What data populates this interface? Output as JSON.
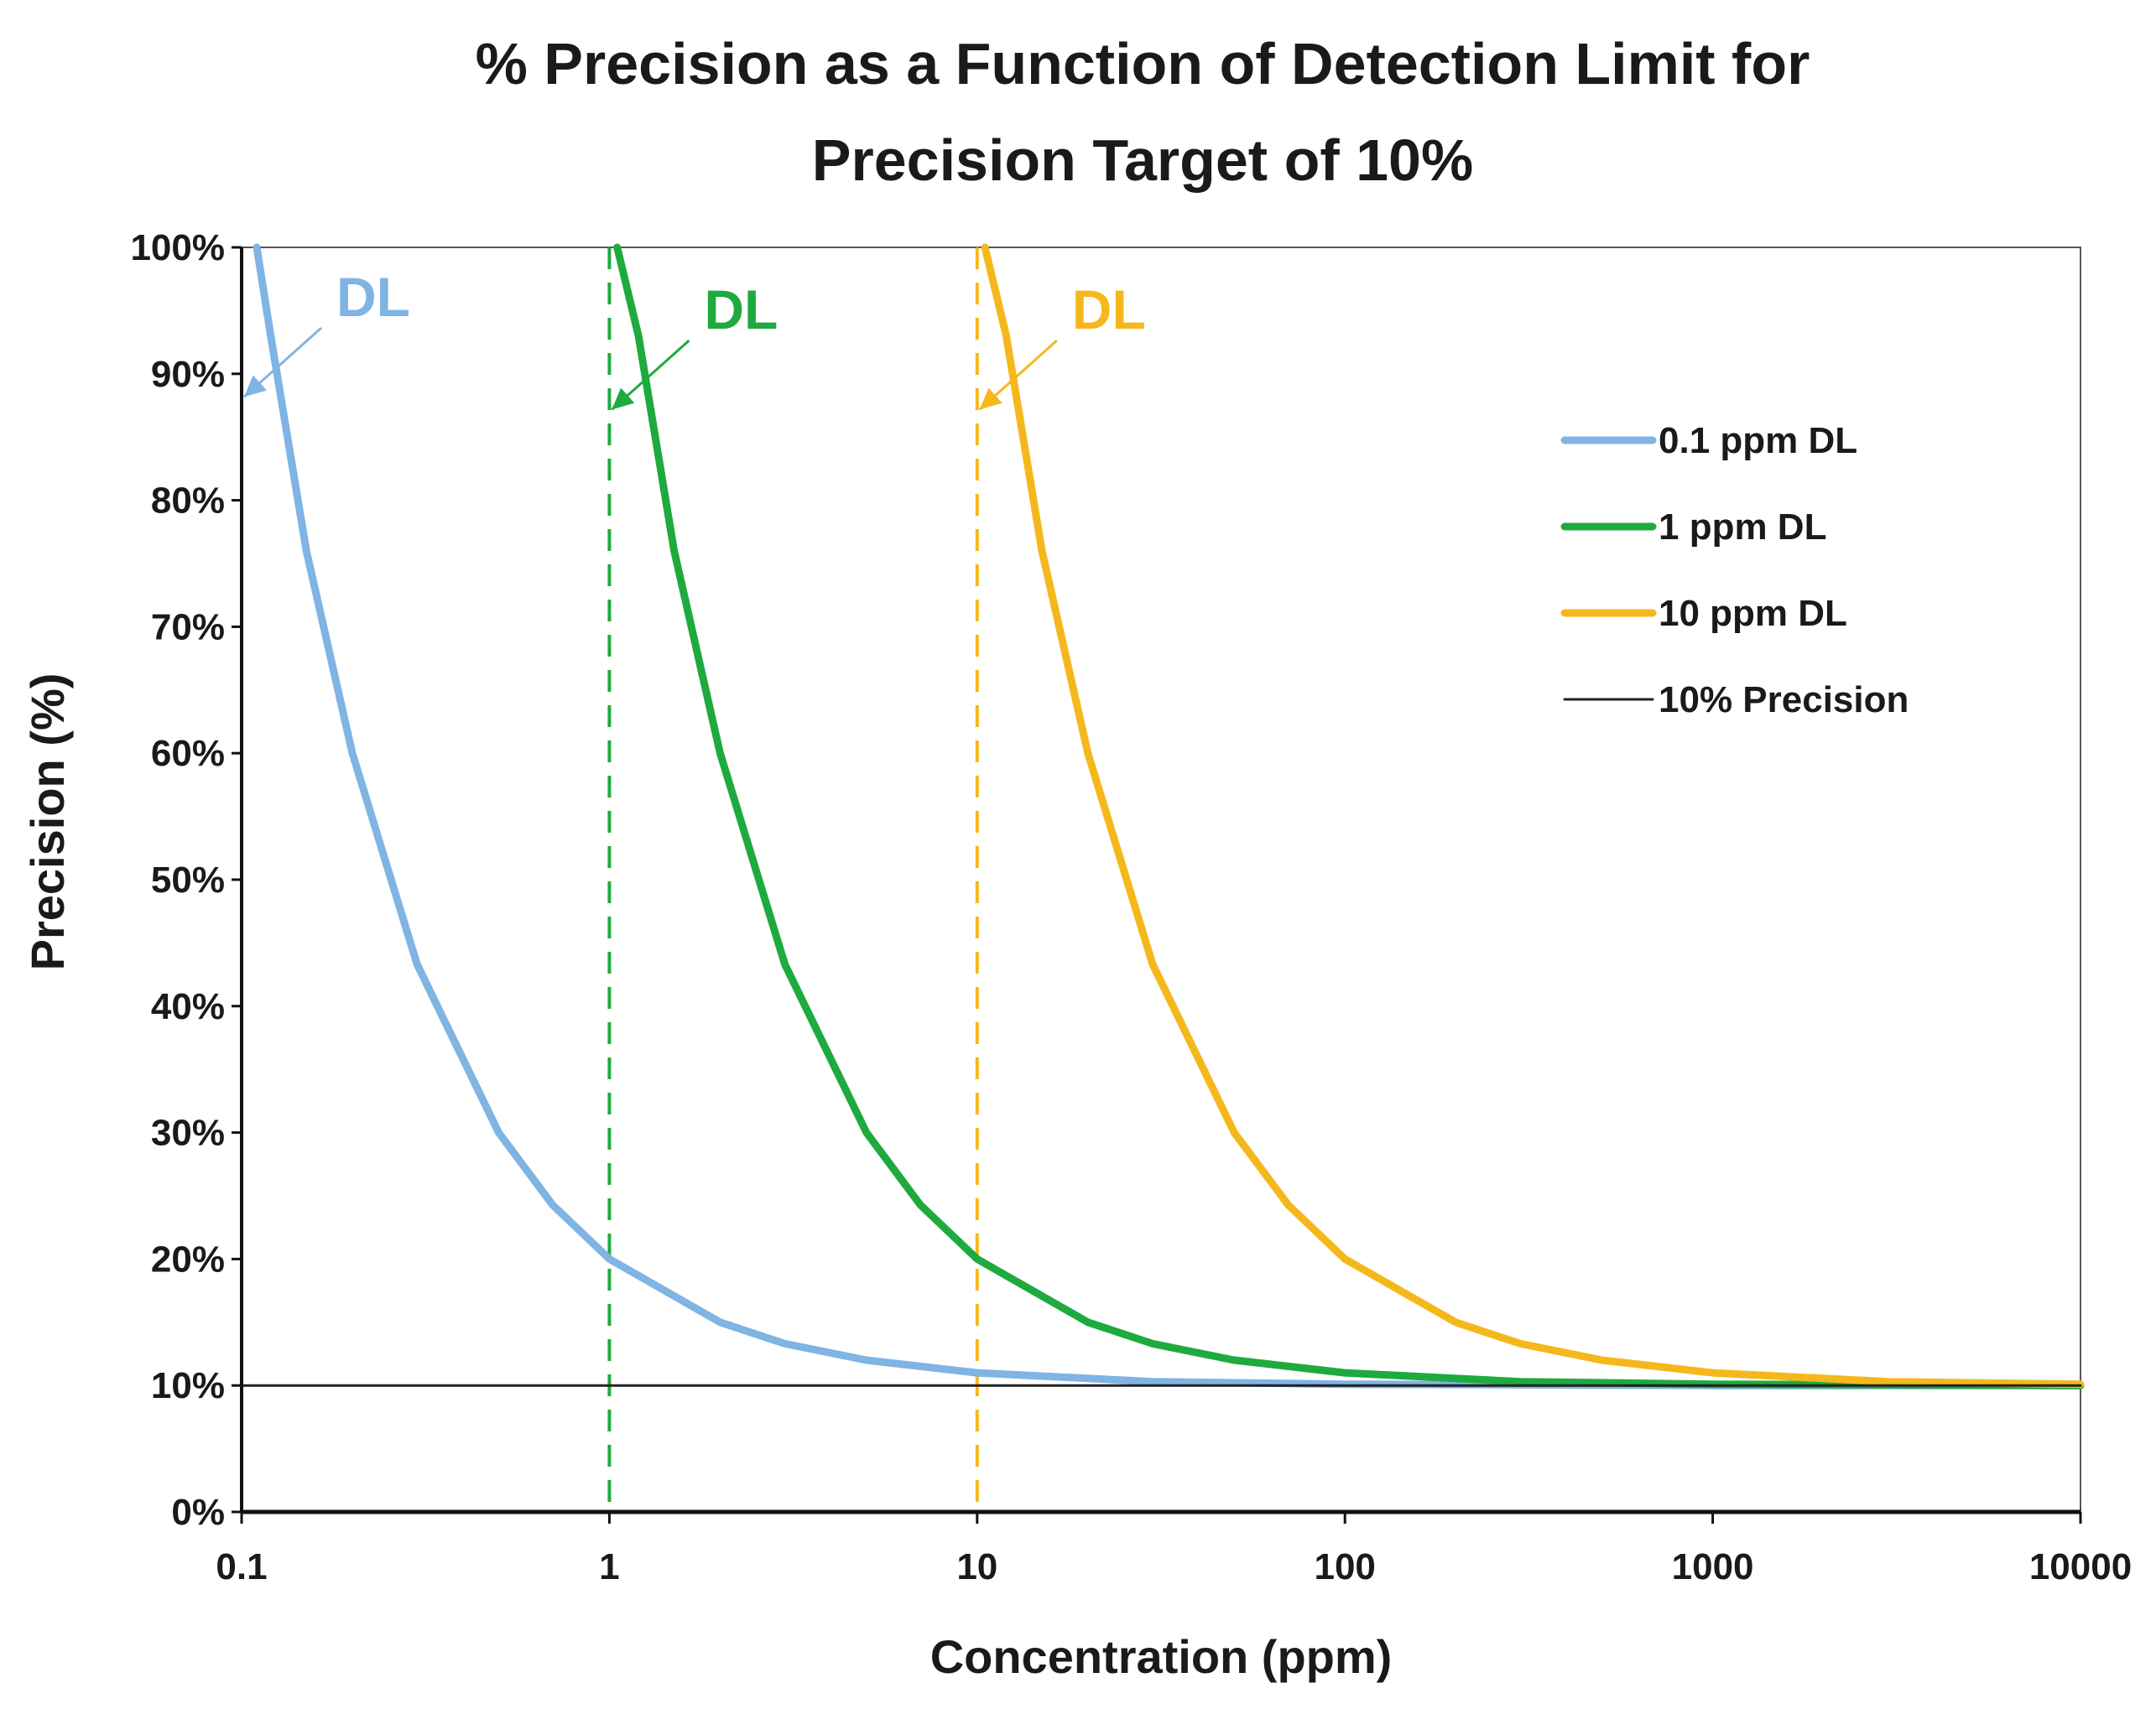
{
  "chart_data": {
    "type": "line",
    "title_line1": "% Precision as a Function of Detection Limit for",
    "title_line2": "Precision Target of 10%",
    "xlabel": "Concentration (ppm)",
    "ylabel": "Precision (%)",
    "x_scale": "log",
    "xlim": [
      0.1,
      10000
    ],
    "ylim": [
      0,
      100
    ],
    "x_ticks": [
      "0.1",
      "1",
      "10",
      "100",
      "1000",
      "10000"
    ],
    "x_tick_values": [
      0.1,
      1,
      10,
      100,
      1000,
      10000
    ],
    "y_ticks": [
      "0%",
      "10%",
      "20%",
      "30%",
      "40%",
      "50%",
      "60%",
      "70%",
      "80%",
      "90%",
      "100%"
    ],
    "y_tick_values": [
      0,
      10,
      20,
      30,
      40,
      50,
      60,
      70,
      80,
      90,
      100
    ],
    "grid": false,
    "legend_position": "top-right",
    "series": [
      {
        "name": "0.1 ppm DL",
        "color": "#7fb4e3",
        "dl": 0.1,
        "x": [
          0.11,
          0.12,
          0.15,
          0.2,
          0.3,
          0.5,
          0.7,
          1,
          2,
          3,
          5,
          10,
          30,
          100,
          1000,
          10000
        ],
        "y": [
          100,
          93,
          76,
          60,
          43.3,
          30,
          24.3,
          20,
          15,
          13.3,
          12,
          11,
          10.3,
          10.1,
          10,
          10
        ]
      },
      {
        "name": "1 ppm DL",
        "color": "#1faa3f",
        "dl": 1,
        "x": [
          1.05,
          1.2,
          1.5,
          2,
          3,
          5,
          7,
          10,
          20,
          30,
          50,
          100,
          300,
          1000,
          10000
        ],
        "y": [
          100,
          93,
          76,
          60,
          43.3,
          30,
          24.3,
          20,
          15,
          13.3,
          12,
          11,
          10.3,
          10.1,
          10
        ]
      },
      {
        "name": "10 ppm DL",
        "color": "#f5b81c",
        "dl": 10,
        "x": [
          10.5,
          12,
          15,
          20,
          30,
          50,
          70,
          100,
          200,
          300,
          500,
          1000,
          3000,
          10000
        ],
        "y": [
          100,
          93,
          76,
          60,
          43.3,
          30,
          24.3,
          20,
          15,
          13.3,
          12,
          11,
          10.3,
          10.1
        ]
      },
      {
        "name": "10% Precision",
        "color": "#222222",
        "x": [
          0.1,
          10000
        ],
        "y": [
          10,
          10
        ]
      }
    ],
    "annotations": [
      {
        "text": "DL",
        "color": "#7fb4e3",
        "target_x": 0.1,
        "target_y": 88
      },
      {
        "text": "DL",
        "color": "#1faa3f",
        "target_x": 1,
        "target_y": 87
      },
      {
        "text": "DL",
        "color": "#f5b81c",
        "target_x": 10,
        "target_y": 87
      }
    ]
  }
}
